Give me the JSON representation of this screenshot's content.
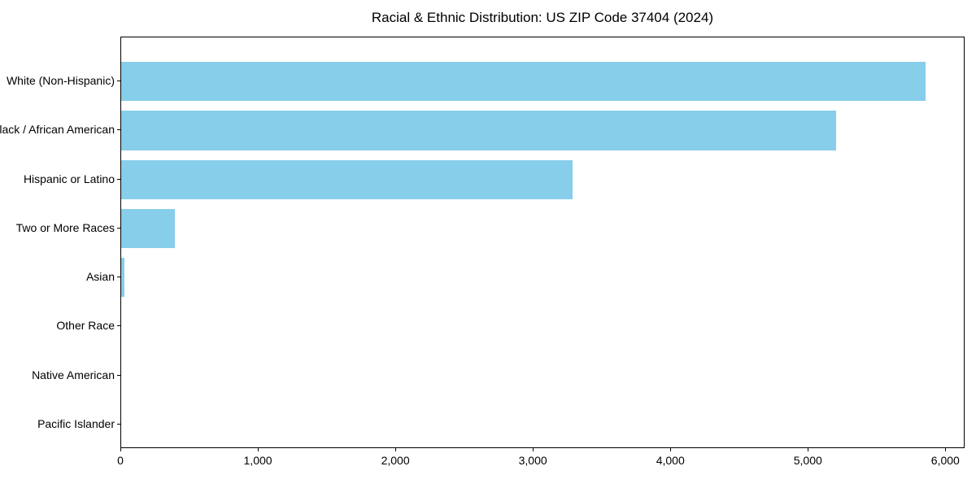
{
  "chart_data": {
    "type": "bar",
    "orientation": "horizontal",
    "title": "Racial & Ethnic Distribution: US ZIP Code 37404 (2024)",
    "categories": [
      "White (Non-Hispanic)",
      "Black / African American",
      "Hispanic or Latino",
      "Two or More Races",
      "Asian",
      "Other Race",
      "Native American",
      "Pacific Islander"
    ],
    "values": [
      5850,
      5200,
      3280,
      390,
      25,
      0,
      0,
      0
    ],
    "xlabel": "",
    "ylabel": "",
    "xlim": [
      0,
      6140
    ],
    "xticks": [
      {
        "value": 0,
        "label": "0"
      },
      {
        "value": 1000,
        "label": "1,000"
      },
      {
        "value": 2000,
        "label": "2,000"
      },
      {
        "value": 3000,
        "label": "3,000"
      },
      {
        "value": 4000,
        "label": "4,000"
      },
      {
        "value": 5000,
        "label": "5,000"
      },
      {
        "value": 6000,
        "label": "6,000"
      }
    ],
    "grid": false,
    "legend": null,
    "colors": {
      "bar": "#87CEEB",
      "axis": "#000000",
      "text": "#000000",
      "background": "#ffffff"
    }
  }
}
